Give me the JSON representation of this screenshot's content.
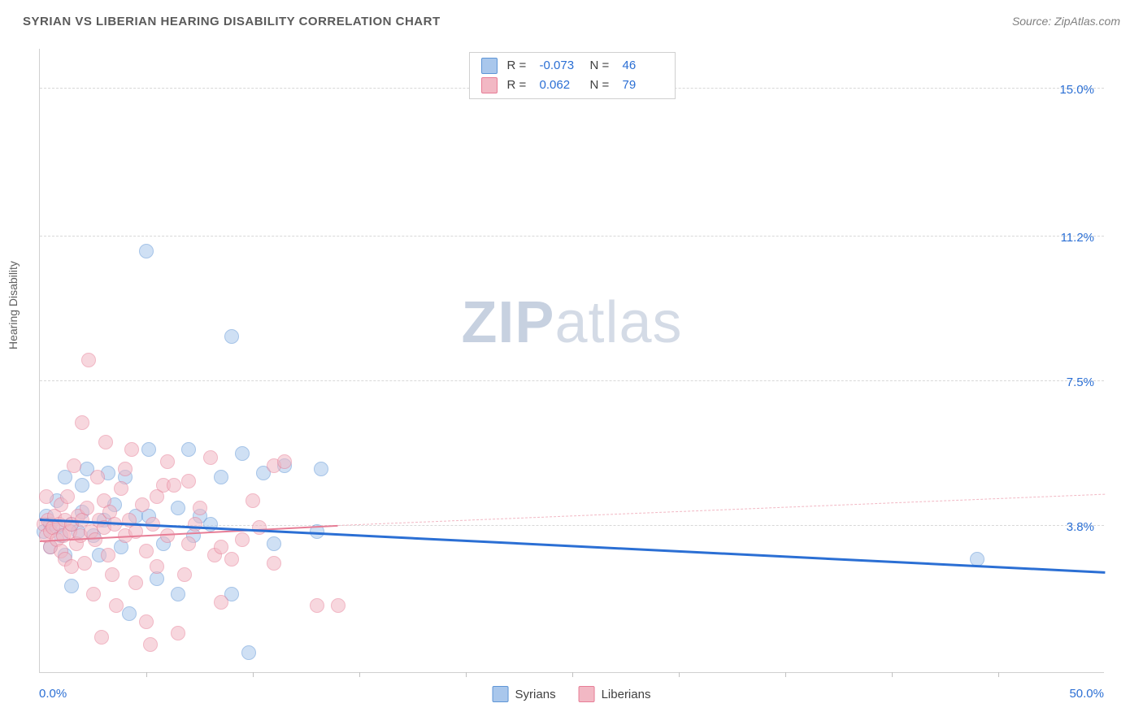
{
  "title": "SYRIAN VS LIBERIAN HEARING DISABILITY CORRELATION CHART",
  "source_label": "Source: ",
  "source_name": "ZipAtlas.com",
  "watermark_bold": "ZIP",
  "watermark_light": "atlas",
  "ylabel": "Hearing Disability",
  "chart": {
    "type": "scatter",
    "xlim": [
      0,
      50
    ],
    "ylim": [
      0,
      16
    ],
    "x_tick_min": "0.0%",
    "x_tick_max": "50.0%",
    "x_minor_step": 5,
    "y_gridlines": [
      {
        "v": 3.8,
        "label": "3.8%"
      },
      {
        "v": 7.5,
        "label": "7.5%"
      },
      {
        "v": 11.2,
        "label": "11.2%"
      },
      {
        "v": 15.0,
        "label": "15.0%"
      }
    ],
    "background_color": "#ffffff",
    "grid_color": "#d8d8d8",
    "axis_color": "#d0d0d0",
    "tick_label_color": "#2b6fd4",
    "point_radius": 9,
    "point_opacity": 0.55,
    "series": [
      {
        "name": "Syrians",
        "fill": "#a9c7ec",
        "stroke": "#5e95d6",
        "correlation_R": "-0.073",
        "N": "46",
        "trend": {
          "color": "#2b6fd4",
          "width": 3,
          "dash": "solid",
          "x1": 0,
          "y1": 3.95,
          "x2": 50,
          "y2": 2.6
        },
        "points": [
          [
            0.2,
            3.6
          ],
          [
            0.3,
            4.0
          ],
          [
            0.5,
            3.8
          ],
          [
            0.5,
            3.2
          ],
          [
            0.8,
            4.4
          ],
          [
            0.8,
            3.7
          ],
          [
            1.0,
            3.5
          ],
          [
            1.2,
            3.0
          ],
          [
            1.2,
            5.0
          ],
          [
            1.5,
            3.8
          ],
          [
            1.5,
            2.2
          ],
          [
            1.8,
            3.6
          ],
          [
            2.0,
            4.1
          ],
          [
            2.0,
            4.8
          ],
          [
            2.2,
            5.2
          ],
          [
            2.5,
            3.5
          ],
          [
            2.8,
            3.0
          ],
          [
            3.0,
            3.9
          ],
          [
            3.2,
            5.1
          ],
          [
            3.5,
            4.3
          ],
          [
            3.8,
            3.2
          ],
          [
            4.0,
            5.0
          ],
          [
            4.2,
            1.5
          ],
          [
            4.5,
            4.0
          ],
          [
            5.0,
            10.8
          ],
          [
            5.1,
            5.7
          ],
          [
            5.1,
            4.0
          ],
          [
            5.5,
            2.4
          ],
          [
            5.8,
            3.3
          ],
          [
            6.5,
            4.2
          ],
          [
            6.5,
            2.0
          ],
          [
            7.0,
            5.7
          ],
          [
            7.2,
            3.5
          ],
          [
            7.5,
            4.0
          ],
          [
            8.0,
            3.8
          ],
          [
            8.5,
            5.0
          ],
          [
            9.0,
            8.6
          ],
          [
            9.0,
            2.0
          ],
          [
            9.5,
            5.6
          ],
          [
            9.8,
            0.5
          ],
          [
            10.5,
            5.1
          ],
          [
            11.0,
            3.3
          ],
          [
            11.5,
            5.3
          ],
          [
            13.0,
            3.6
          ],
          [
            13.2,
            5.2
          ],
          [
            44.0,
            2.9
          ]
        ]
      },
      {
        "name": "Liberians",
        "fill": "#f2b8c4",
        "stroke": "#e77d96",
        "correlation_R": "0.062",
        "N": "79",
        "trend_solid": {
          "color": "#e77d96",
          "width": 2,
          "dash": "solid",
          "x1": 0,
          "y1": 3.4,
          "x2": 14,
          "y2": 3.8
        },
        "trend_dash": {
          "color": "#f2b8c4",
          "width": 1,
          "dash": "dashed",
          "x1": 14,
          "y1": 3.8,
          "x2": 50,
          "y2": 4.6
        },
        "points": [
          [
            0.2,
            3.8
          ],
          [
            0.3,
            3.5
          ],
          [
            0.3,
            4.5
          ],
          [
            0.4,
            3.9
          ],
          [
            0.5,
            3.6
          ],
          [
            0.5,
            3.2
          ],
          [
            0.6,
            3.7
          ],
          [
            0.7,
            4.0
          ],
          [
            0.8,
            3.4
          ],
          [
            0.9,
            3.8
          ],
          [
            1.0,
            3.1
          ],
          [
            1.0,
            4.3
          ],
          [
            1.1,
            3.5
          ],
          [
            1.2,
            2.9
          ],
          [
            1.2,
            3.9
          ],
          [
            1.3,
            4.5
          ],
          [
            1.4,
            3.6
          ],
          [
            1.5,
            3.8
          ],
          [
            1.5,
            2.7
          ],
          [
            1.6,
            5.3
          ],
          [
            1.7,
            3.3
          ],
          [
            1.8,
            4.0
          ],
          [
            1.9,
            3.5
          ],
          [
            2.0,
            3.9
          ],
          [
            2.0,
            6.4
          ],
          [
            2.1,
            2.8
          ],
          [
            2.2,
            4.2
          ],
          [
            2.3,
            8.0
          ],
          [
            2.4,
            3.6
          ],
          [
            2.5,
            2.0
          ],
          [
            2.6,
            3.4
          ],
          [
            2.7,
            5.0
          ],
          [
            2.8,
            3.9
          ],
          [
            2.9,
            0.9
          ],
          [
            3.0,
            3.7
          ],
          [
            3.0,
            4.4
          ],
          [
            3.1,
            5.9
          ],
          [
            3.2,
            3.0
          ],
          [
            3.3,
            4.1
          ],
          [
            3.4,
            2.5
          ],
          [
            3.5,
            3.8
          ],
          [
            3.6,
            1.7
          ],
          [
            3.8,
            4.7
          ],
          [
            4.0,
            3.5
          ],
          [
            4.0,
            5.2
          ],
          [
            4.2,
            3.9
          ],
          [
            4.3,
            5.7
          ],
          [
            4.5,
            2.3
          ],
          [
            4.5,
            3.6
          ],
          [
            4.8,
            4.3
          ],
          [
            5.0,
            3.1
          ],
          [
            5.0,
            1.3
          ],
          [
            5.2,
            0.7
          ],
          [
            5.3,
            3.8
          ],
          [
            5.5,
            4.5
          ],
          [
            5.5,
            2.7
          ],
          [
            5.8,
            4.8
          ],
          [
            6.0,
            3.5
          ],
          [
            6.0,
            5.4
          ],
          [
            6.3,
            4.8
          ],
          [
            6.5,
            1.0
          ],
          [
            6.8,
            2.5
          ],
          [
            7.0,
            3.3
          ],
          [
            7.0,
            4.9
          ],
          [
            7.3,
            3.8
          ],
          [
            7.5,
            4.2
          ],
          [
            8.0,
            5.5
          ],
          [
            8.2,
            3.0
          ],
          [
            8.5,
            3.2
          ],
          [
            8.5,
            1.8
          ],
          [
            9.0,
            2.9
          ],
          [
            9.5,
            3.4
          ],
          [
            10.0,
            4.4
          ],
          [
            10.3,
            3.7
          ],
          [
            11.0,
            5.3
          ],
          [
            11.0,
            2.8
          ],
          [
            11.5,
            5.4
          ],
          [
            13.0,
            1.7
          ],
          [
            14.0,
            1.7
          ]
        ]
      }
    ]
  }
}
